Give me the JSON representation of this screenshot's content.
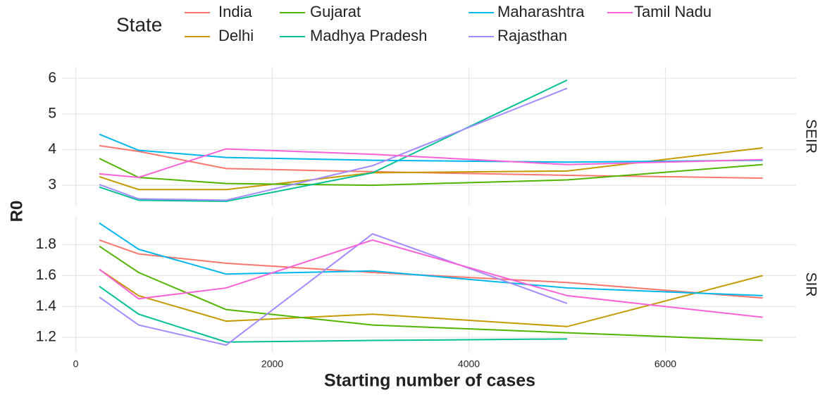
{
  "chart_data": [
    {
      "type": "line",
      "facet": "SEIR",
      "legend_title": "State",
      "y_label": "R0",
      "x": [
        240,
        640,
        1530,
        3020,
        5000,
        6990
      ],
      "xlim": [
        -140,
        7330
      ],
      "ylim": [
        2.43,
        6.32
      ],
      "yticks": [
        3,
        4,
        5,
        6
      ],
      "grid": true,
      "series": [
        {
          "name": "India",
          "color": "#F8766D",
          "values": [
            4.11,
            3.95,
            3.47,
            3.38,
            3.28,
            3.2
          ]
        },
        {
          "name": "Delhi",
          "color": "#C49A00",
          "values": [
            3.24,
            2.88,
            2.88,
            3.35,
            3.4,
            4.05
          ]
        },
        {
          "name": "Gujarat",
          "color": "#53B400",
          "values": [
            3.75,
            3.22,
            3.05,
            3.0,
            3.15,
            3.58
          ]
        },
        {
          "name": "Madhya Pradesh",
          "color": "#00C094",
          "values": [
            2.95,
            2.58,
            2.55,
            3.35,
            5.95,
            null
          ]
        },
        {
          "name": "Maharashtra",
          "color": "#00B6EB",
          "values": [
            4.43,
            3.98,
            3.78,
            3.7,
            3.65,
            3.7
          ]
        },
        {
          "name": "Rajasthan",
          "color": "#A58AFF",
          "values": [
            3.02,
            2.62,
            2.58,
            3.55,
            5.72,
            null
          ]
        },
        {
          "name": "Tamil Nadu",
          "color": "#FB61D7",
          "values": [
            3.32,
            3.22,
            4.02,
            3.87,
            3.58,
            3.72
          ]
        }
      ]
    },
    {
      "type": "line",
      "facet": "SIR",
      "x_label": "Starting number of cases",
      "x": [
        240,
        640,
        1530,
        3020,
        5000,
        6990
      ],
      "xlim": [
        -140,
        7330
      ],
      "xticks": [
        0,
        2000,
        4000,
        6000
      ],
      "ylim": [
        1.105,
        1.98
      ],
      "yticks": [
        1.2,
        1.4,
        1.6,
        1.8
      ],
      "grid": true,
      "series": [
        {
          "name": "India",
          "color": "#F8766D",
          "values": [
            1.83,
            1.74,
            1.68,
            1.62,
            1.555,
            1.455
          ]
        },
        {
          "name": "Delhi",
          "color": "#C49A00",
          "values": [
            1.64,
            1.47,
            1.305,
            1.35,
            1.27,
            1.6
          ]
        },
        {
          "name": "Gujarat",
          "color": "#53B400",
          "values": [
            1.79,
            1.62,
            1.38,
            1.28,
            1.23,
            1.18
          ]
        },
        {
          "name": "Madhya Pradesh",
          "color": "#00C094",
          "values": [
            1.53,
            1.35,
            1.17,
            1.18,
            1.19,
            null
          ]
        },
        {
          "name": "Maharashtra",
          "color": "#00B6EB",
          "values": [
            1.94,
            1.77,
            1.61,
            1.63,
            1.52,
            1.47
          ]
        },
        {
          "name": "Rajasthan",
          "color": "#A58AFF",
          "values": [
            1.46,
            1.28,
            1.15,
            1.87,
            1.42,
            null
          ]
        },
        {
          "name": "Tamil Nadu",
          "color": "#FB61D7",
          "values": [
            1.64,
            1.45,
            1.52,
            1.83,
            1.47,
            1.33
          ]
        }
      ]
    }
  ]
}
